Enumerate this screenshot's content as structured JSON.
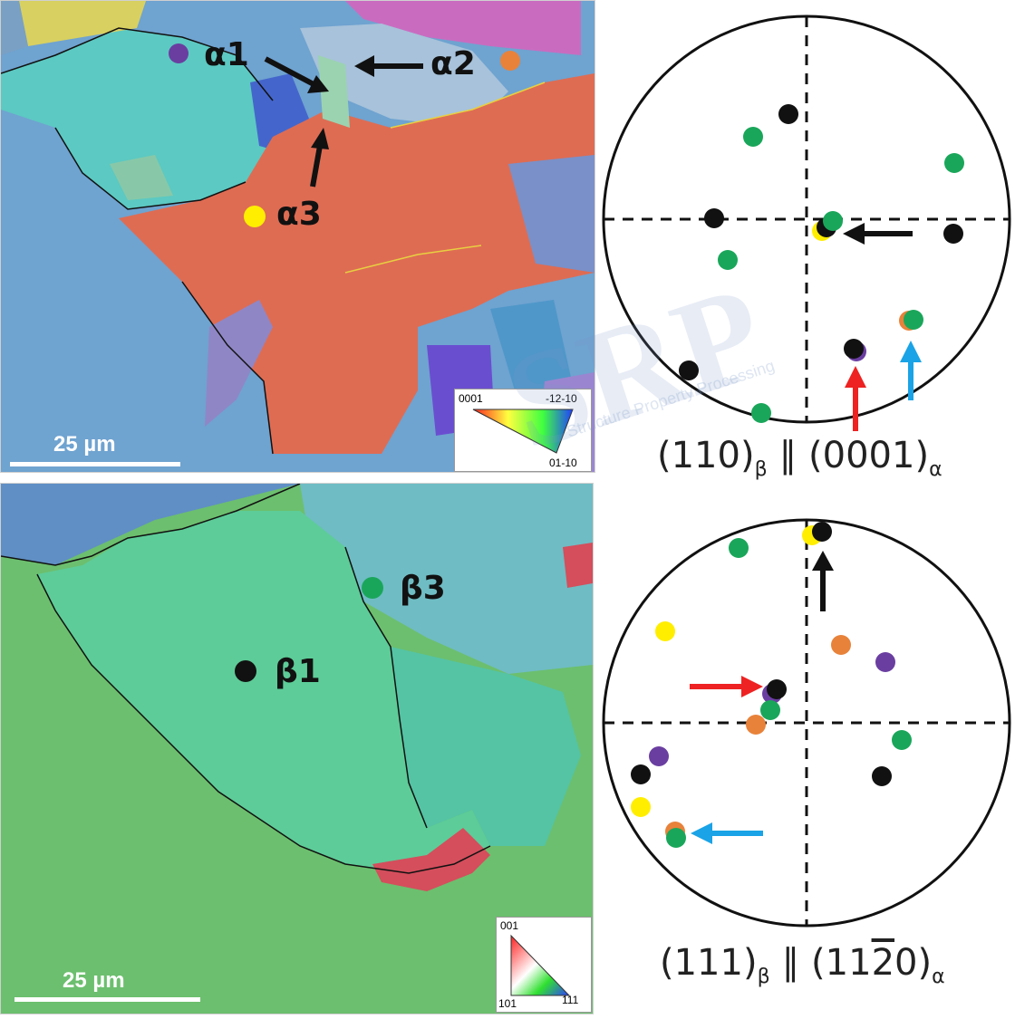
{
  "top_map": {
    "labels": {
      "a1": "α1",
      "a2": "α2",
      "a3": "α3"
    },
    "marker_colors": {
      "a1": "#6a3ea1",
      "a2": "#e8823a",
      "a3": "#ffee00"
    },
    "scale_label": "25 µm",
    "legend": {
      "top_left": "0001",
      "top_right": "-12-10",
      "bottom_right": "01-10"
    }
  },
  "bottom_map": {
    "labels": {
      "b1": "β1",
      "b3": "β3"
    },
    "marker_colors": {
      "b1": "#111111",
      "b3": "#1aa65a"
    },
    "scale_label": "25 µm",
    "legend": {
      "top": "001",
      "bottom_left": "101",
      "bottom_right": "111"
    }
  },
  "pole_figures": [
    {
      "caption_main_1": "(110)",
      "caption_sub_1": "β",
      "caption_sep": " ∥ ",
      "caption_main_2": "(0001)",
      "caption_sub_2": "α"
    },
    {
      "caption_main_1": "(111)",
      "caption_sub_1": "β",
      "caption_sep": " ∥ ",
      "caption_main_2": "(11",
      "caption_bar": "2",
      "caption_main_3": "0)",
      "caption_sub_2": "α"
    }
  ],
  "watermark_text": "SRP",
  "watermark_sub": "Structure Property Processing",
  "colors": {
    "black": "#111111",
    "green": "#1aa65a",
    "orange": "#e8823a",
    "purple": "#6a3ea1",
    "yellow": "#ffee00",
    "red_arrow": "#ee2222",
    "blue_arrow": "#1aa3e6"
  }
}
